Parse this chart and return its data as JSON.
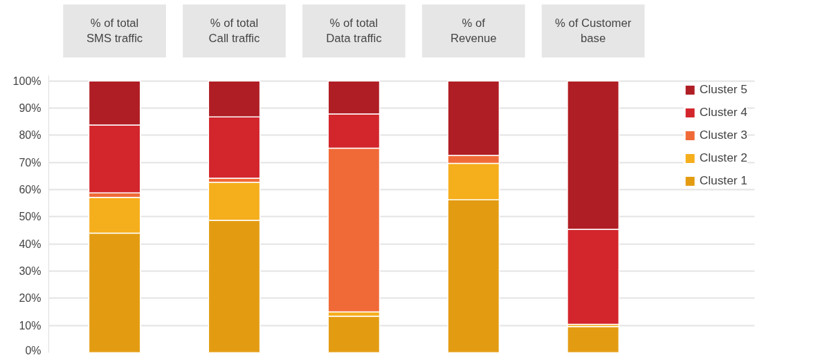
{
  "chart_data": {
    "type": "bar",
    "stacked": true,
    "categories": [
      "% of total\nSMS traffic",
      "% of total\nCall traffic",
      "% of total\nData traffic",
      "% of\nRevenue",
      "% of Customer\nbase"
    ],
    "series": [
      {
        "name": "Cluster 1",
        "color": "#e39c12",
        "values": [
          44,
          48.7,
          13.4,
          56.3,
          9.6
        ]
      },
      {
        "name": "Cluster 2",
        "color": "#f5ae1c",
        "values": [
          13.2,
          14,
          1.6,
          13.4,
          0.8
        ]
      },
      {
        "name": "Cluster 3",
        "color": "#f06a37",
        "values": [
          1.6,
          1.5,
          60.3,
          2.9,
          0
        ]
      },
      {
        "name": "Cluster 4",
        "color": "#d3252c",
        "values": [
          25,
          22.6,
          12.6,
          0,
          35
        ]
      },
      {
        "name": "Cluster 5",
        "color": "#b01e25",
        "values": [
          16.2,
          13.2,
          12.1,
          27.4,
          54.6
        ]
      }
    ],
    "ylim": [
      0,
      102
    ],
    "yticks": [
      {
        "value": 0,
        "label": "0%"
      },
      {
        "value": 10,
        "label": "10%"
      },
      {
        "value": 20,
        "label": "20%"
      },
      {
        "value": 30,
        "label": "30%"
      },
      {
        "value": 40,
        "label": "40%"
      },
      {
        "value": 50,
        "label": "50%"
      },
      {
        "value": 60,
        "label": "60%"
      },
      {
        "value": 70,
        "label": "70%"
      },
      {
        "value": 80,
        "label": "80%"
      },
      {
        "value": 90,
        "label": "90%"
      },
      {
        "value": 100,
        "label": "100%"
      }
    ],
    "grid": "y",
    "legend": "right"
  }
}
